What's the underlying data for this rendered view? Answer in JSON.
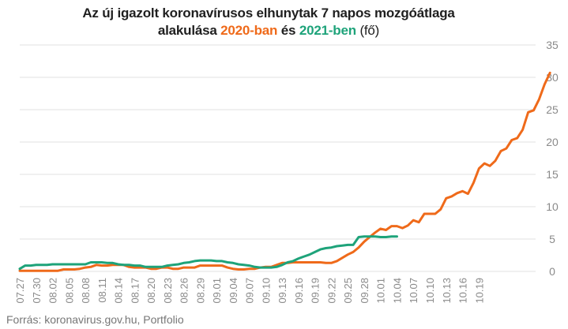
{
  "title": {
    "line1": "Az új igazolt koronavírusos elhunytak 7 napos mozgóátlaga",
    "line2_prefix": "alakulása ",
    "series_2020_label": "2020-ban",
    "connector": " és ",
    "series_2021_label": "2021-ben",
    "unit": " (fő)"
  },
  "source": "Forrás: koronavirus.gov.hu, Portfolio",
  "colors": {
    "s2020": "#ef6a1a",
    "s2021": "#1ea37a",
    "grid": "#e2e2e2",
    "text": "#8a8a8a"
  },
  "chart_data": {
    "type": "line",
    "ylim": [
      0,
      35
    ],
    "yticks": [
      0,
      5,
      10,
      15,
      20,
      25,
      30,
      35
    ],
    "x_tick_labels": [
      "07.27",
      "07.30",
      "08.02",
      "08.05",
      "08.08",
      "08.11",
      "08.14",
      "08.17",
      "08.20",
      "08.23",
      "08.26",
      "08.29",
      "09.01",
      "09.04",
      "09.07",
      "09.10",
      "09.13",
      "09.16",
      "09.19",
      "09.22",
      "09.25",
      "09.28",
      "10.01",
      "10.04",
      "10.07",
      "10.10",
      "10.13",
      "10.16",
      "10.19"
    ],
    "x_start": "07.27",
    "series": [
      {
        "name": "2020-ban",
        "color": "#ef6a1a",
        "values": [
          0.1,
          0.1,
          0.1,
          0.1,
          0.1,
          0.1,
          0.1,
          0.1,
          0.3,
          0.3,
          0.3,
          0.4,
          0.6,
          0.7,
          1.0,
          0.9,
          0.9,
          1.0,
          1.0,
          1.0,
          0.7,
          0.6,
          0.6,
          0.6,
          0.4,
          0.4,
          0.6,
          0.6,
          0.4,
          0.4,
          0.6,
          0.6,
          0.6,
          0.9,
          0.9,
          0.9,
          0.9,
          0.9,
          0.6,
          0.4,
          0.3,
          0.3,
          0.4,
          0.4,
          0.6,
          0.7,
          0.7,
          1.0,
          1.3,
          1.3,
          1.4,
          1.4,
          1.4,
          1.4,
          1.4,
          1.4,
          1.3,
          1.3,
          1.6,
          2.1,
          2.6,
          3.0,
          3.7,
          4.6,
          5.3,
          6.0,
          6.6,
          6.4,
          7.0,
          7.0,
          6.7,
          7.1,
          7.9,
          7.6,
          8.9,
          8.9,
          8.9,
          9.6,
          11.3,
          11.6,
          12.1,
          12.4,
          12.0,
          13.7,
          15.9,
          16.7,
          16.3,
          17.1,
          18.6,
          19.0,
          20.3,
          20.6,
          21.9,
          24.6,
          24.9,
          26.6,
          28.9,
          30.7
        ]
      },
      {
        "name": "2021-ben",
        "color": "#1ea37a",
        "values": [
          0.4,
          0.9,
          0.9,
          1.0,
          1.0,
          1.0,
          1.1,
          1.1,
          1.1,
          1.1,
          1.1,
          1.1,
          1.1,
          1.4,
          1.4,
          1.4,
          1.3,
          1.3,
          1.1,
          1.0,
          1.0,
          0.9,
          0.9,
          0.7,
          0.7,
          0.7,
          0.7,
          0.9,
          1.0,
          1.1,
          1.3,
          1.4,
          1.6,
          1.7,
          1.7,
          1.7,
          1.6,
          1.6,
          1.4,
          1.3,
          1.1,
          1.0,
          0.9,
          0.7,
          0.6,
          0.6,
          0.6,
          0.7,
          1.0,
          1.4,
          1.6,
          2.0,
          2.3,
          2.6,
          3.0,
          3.4,
          3.6,
          3.7,
          3.9,
          4.0,
          4.1,
          4.1,
          5.3,
          5.4,
          5.4,
          5.4,
          5.3,
          5.3,
          5.4,
          5.4
        ]
      }
    ]
  }
}
